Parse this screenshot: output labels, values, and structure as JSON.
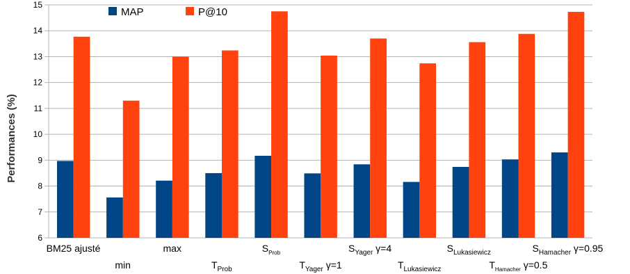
{
  "chart_data": {
    "type": "bar",
    "ylabel": "Performances (%)",
    "ylim": [
      6,
      15
    ],
    "yticks": [
      6,
      7,
      8,
      9,
      10,
      11,
      12,
      13,
      14,
      15
    ],
    "grid": true,
    "legend_position": "top-left",
    "categories": [
      {
        "main": "BM25 ajusté",
        "sub": "",
        "suffix": ""
      },
      {
        "main": "min",
        "sub": "",
        "suffix": ""
      },
      {
        "main": "max",
        "sub": "",
        "suffix": ""
      },
      {
        "main": "T",
        "sub": "Prob",
        "suffix": ""
      },
      {
        "main": "S",
        "sub": "Prob",
        "suffix": ""
      },
      {
        "main": "T",
        "sub": "Yager",
        "suffix": " γ=1"
      },
      {
        "main": "S",
        "sub": "Yager",
        "suffix": " γ=4"
      },
      {
        "main": "T",
        "sub": "Lukasiewicz",
        "suffix": ""
      },
      {
        "main": "S",
        "sub": "Lukasiewicz",
        "suffix": ""
      },
      {
        "main": "T",
        "sub": "Hamacher",
        "suffix": " γ=0.5"
      },
      {
        "main": "S",
        "sub": "Hamacher",
        "suffix": " γ=0.95"
      }
    ],
    "series": [
      {
        "name": "MAP",
        "color": "#004586",
        "values": [
          8.97,
          7.56,
          8.21,
          8.5,
          9.17,
          8.49,
          8.84,
          8.16,
          8.74,
          9.03,
          9.3
        ]
      },
      {
        "name": "P@10",
        "color": "#ff420e",
        "values": [
          13.77,
          11.3,
          13.0,
          13.24,
          14.75,
          13.04,
          13.7,
          12.74,
          13.56,
          13.88,
          14.73
        ]
      }
    ]
  },
  "colors": {
    "grid": "#b3b3b3",
    "axis": "#b3b3b3"
  }
}
